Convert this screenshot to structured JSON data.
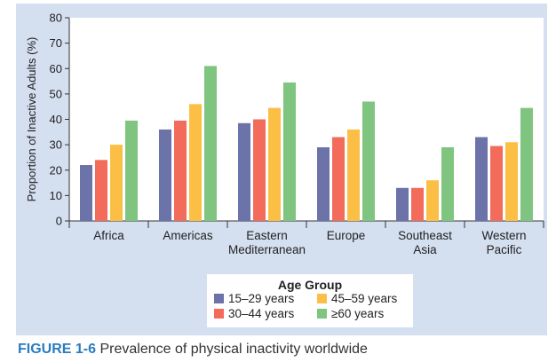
{
  "chart_data": {
    "type": "bar",
    "title": "",
    "ylabel": "Proportion of Inactive Adults (%)",
    "xlabel": "",
    "ylim": [
      0,
      80
    ],
    "yticks": [
      0,
      10,
      20,
      30,
      40,
      50,
      60,
      70,
      80
    ],
    "grid": false,
    "legend_title": "Age Group",
    "legend_position": "bottom-center",
    "categories": [
      [
        "Africa"
      ],
      [
        "Americas"
      ],
      [
        "Eastern",
        "Mediterranean"
      ],
      [
        "Europe"
      ],
      [
        "Southeast",
        "Asia"
      ],
      [
        "Western",
        "Pacific"
      ]
    ],
    "series": [
      {
        "name": "15–29 years",
        "color": "#6b73a8",
        "values": [
          22,
          36,
          38.5,
          29,
          13,
          33
        ]
      },
      {
        "name": "30–44 years",
        "color": "#f26b5b",
        "values": [
          24,
          39.5,
          40,
          33,
          13,
          29.5
        ]
      },
      {
        "name": "45–59 years",
        "color": "#fbbf45",
        "values": [
          30,
          46,
          44.5,
          36,
          16,
          31
        ]
      },
      {
        "name": "≥60 years",
        "color": "#7fc47f",
        "values": [
          39.5,
          61,
          54.5,
          47,
          29,
          44.5
        ]
      }
    ],
    "colors": {
      "panel_background": "#d4dff0",
      "plot_background": "#ffffff",
      "axis": "#333333"
    }
  },
  "caption": {
    "label": "FIGURE 1-6",
    "text": "Prevalence of physical inactivity worldwide"
  }
}
